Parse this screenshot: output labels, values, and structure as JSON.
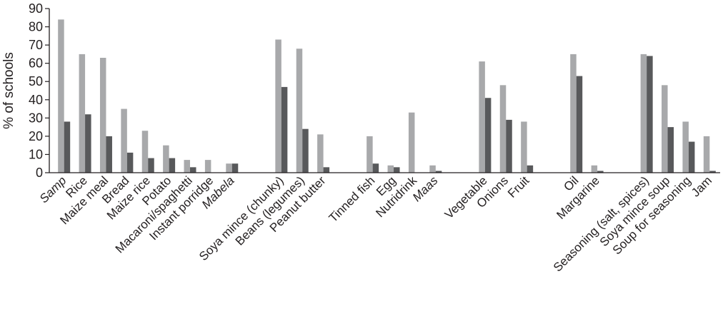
{
  "chart_data": {
    "type": "bar",
    "title": "",
    "xlabel": "",
    "ylabel": "% of schools",
    "ylim": [
      0,
      90
    ],
    "yticks": [
      0,
      10,
      20,
      30,
      40,
      50,
      60,
      70,
      80,
      90
    ],
    "grid": false,
    "legend": "none",
    "colors": {
      "series1": "#a8a9ab",
      "series2": "#58595b",
      "axis": "#231f20",
      "text": "#231f20"
    },
    "categories": [
      "Samp",
      "Rice",
      "Maize meal",
      "Bread",
      "Maize rice",
      "Potato",
      "Macaroni/spaghetti",
      "Instant porridge",
      "Mabela",
      "Soya mince (chunky)",
      "Beans (legumes)",
      "Peanut butter",
      "Tinned fish",
      "Egg",
      "Nutridrink",
      "Maas",
      "Vegetable",
      "Onions",
      "Fruit",
      "Oil",
      "Margarine",
      "Seasoning (salt, spices)",
      "Soya mince soup",
      "Soup for seasoning",
      "Jam"
    ],
    "italic_categories": [
      "Samp",
      "Mabela",
      "Maas"
    ],
    "groups": [
      9,
      3,
      4,
      3,
      2,
      4
    ],
    "series": [
      {
        "values": [
          84,
          65,
          63,
          35,
          23,
          15,
          7,
          7,
          5,
          73,
          68,
          21,
          20,
          4,
          33,
          4,
          61,
          48,
          28,
          65,
          4,
          65,
          48,
          28,
          20
        ]
      },
      {
        "values": [
          28,
          32,
          20,
          11,
          8,
          8,
          3,
          0,
          5,
          47,
          24,
          3,
          5,
          3,
          0,
          1,
          41,
          29,
          4,
          53,
          1,
          64,
          25,
          17,
          1
        ]
      }
    ]
  }
}
